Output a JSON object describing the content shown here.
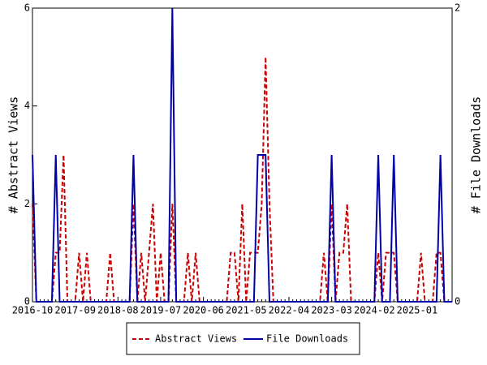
{
  "chart_data": {
    "type": "line",
    "categories": [
      "2016-10",
      null,
      null,
      null,
      null,
      null,
      null,
      null,
      null,
      null,
      null,
      "2017-09",
      null,
      null,
      null,
      null,
      null,
      null,
      null,
      null,
      null,
      null,
      "2018-08",
      null,
      null,
      null,
      null,
      null,
      null,
      null,
      null,
      null,
      null,
      "2019-07",
      null,
      null,
      null,
      null,
      null,
      null,
      null,
      null,
      null,
      null,
      "2020-06",
      null,
      null,
      null,
      null,
      null,
      null,
      null,
      null,
      null,
      null,
      "2021-05",
      null,
      null,
      null,
      null,
      null,
      null,
      null,
      null,
      null,
      null,
      "2022-04",
      null,
      null,
      null,
      null,
      null,
      null,
      null,
      null,
      null,
      null,
      "2023-03",
      null,
      null,
      null,
      null,
      null,
      null,
      null,
      null,
      null,
      null,
      "2024-02",
      null,
      null,
      null,
      null,
      null,
      null,
      null,
      null,
      null,
      null,
      "2025-01",
      null,
      null,
      null,
      null,
      null,
      null,
      null,
      null,
      null
    ],
    "ylabel": "# Abstract Views",
    "y2label": "# File Downloads",
    "ylim": [
      0,
      6
    ],
    "yticks": [
      0,
      2,
      4,
      6
    ],
    "y2lim": [
      0,
      2
    ],
    "y2ticks": [
      0,
      2
    ],
    "series": [
      {
        "name": "Abstract Views",
        "color": "#cc0000",
        "dashed": true,
        "values": [
          2,
          0,
          0,
          0,
          0,
          0,
          1,
          1,
          3,
          0,
          0,
          0,
          1,
          0,
          1,
          0,
          0,
          0,
          0,
          0,
          1,
          0,
          0,
          0,
          0,
          0,
          2,
          0,
          1,
          0,
          1,
          2,
          0,
          1,
          0,
          0,
          2,
          0,
          0,
          0,
          1,
          0,
          1,
          0,
          0,
          0,
          0,
          0,
          0,
          0,
          0,
          1,
          1,
          0,
          2,
          0,
          1,
          1,
          1,
          2,
          5,
          2,
          0,
          0,
          0,
          0,
          0,
          0,
          0,
          0,
          0,
          0,
          0,
          0,
          0,
          1,
          0,
          2,
          0,
          1,
          1,
          2,
          0,
          0,
          0,
          0,
          0,
          0,
          0,
          1,
          0,
          1,
          1,
          1,
          0,
          0,
          0,
          0,
          0,
          0,
          1,
          0,
          0,
          0,
          1,
          1,
          0,
          0,
          0
        ]
      },
      {
        "name": "File Downloads",
        "color": "#0000aa",
        "axis": "y2",
        "values": [
          1,
          0,
          0,
          0,
          0,
          0,
          1,
          0,
          0,
          0,
          0,
          0,
          0,
          0,
          0,
          0,
          0,
          0,
          0,
          0,
          0,
          0,
          0,
          0,
          0,
          0,
          1,
          0,
          0,
          0,
          0,
          0,
          0,
          0,
          0,
          0,
          2,
          0,
          0,
          0,
          0,
          0,
          0,
          0,
          0,
          0,
          0,
          0,
          0,
          0,
          0,
          0,
          0,
          0,
          0,
          0,
          0,
          0,
          1,
          1,
          1,
          0,
          0,
          0,
          0,
          0,
          0,
          0,
          0,
          0,
          0,
          0,
          0,
          0,
          0,
          0,
          0,
          1,
          0,
          0,
          0,
          0,
          0,
          0,
          0,
          0,
          0,
          0,
          0,
          1,
          0,
          0,
          0,
          1,
          0,
          0,
          0,
          0,
          0,
          0,
          0,
          0,
          0,
          0,
          0,
          1,
          0,
          0,
          0
        ]
      }
    ]
  }
}
